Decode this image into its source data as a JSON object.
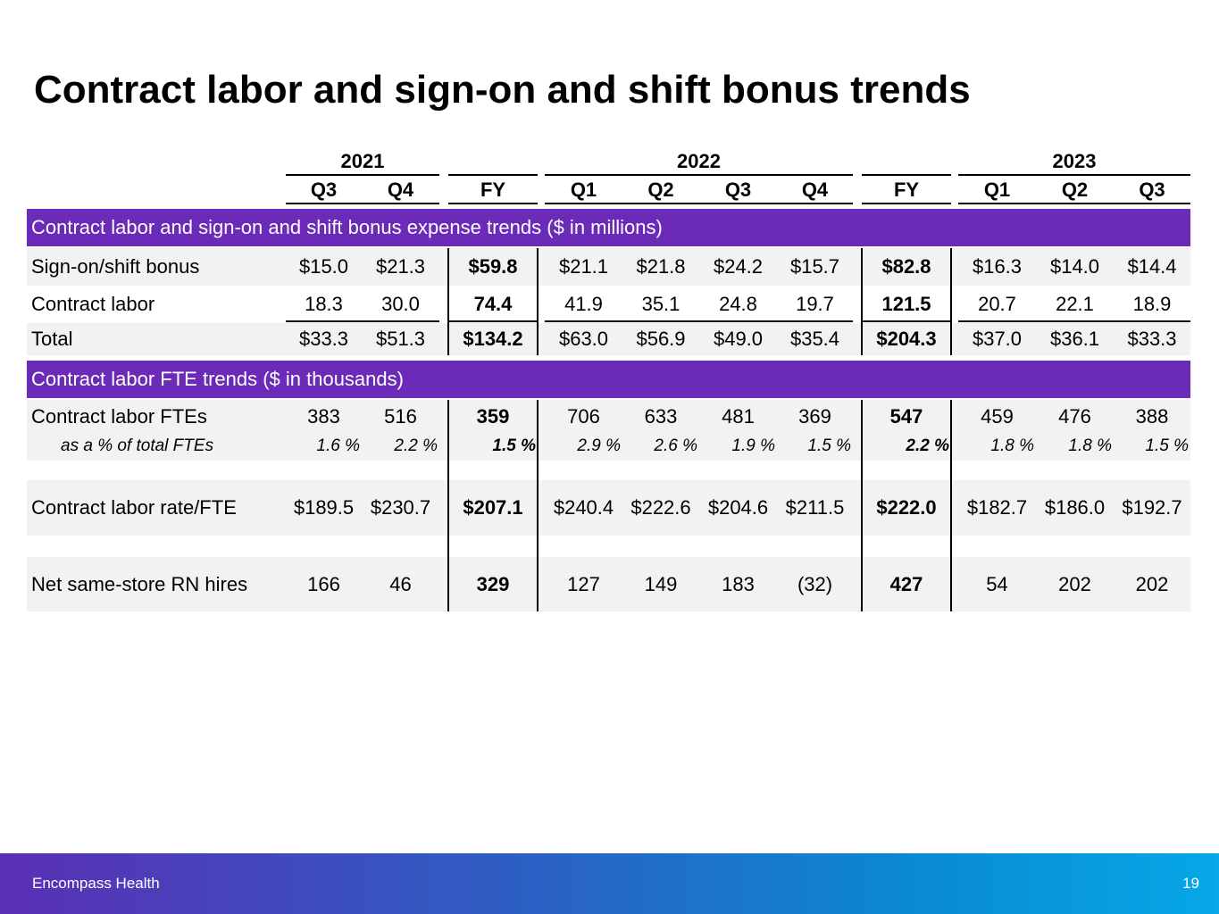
{
  "header": {
    "title": "Contract labor and sign-on and shift bonus trends"
  },
  "table": {
    "years": [
      "2021",
      "2022",
      "2023"
    ],
    "columns": [
      "Q3",
      "Q4",
      "FY",
      "Q1",
      "Q2",
      "Q3",
      "Q4",
      "FY",
      "Q1",
      "Q2",
      "Q3"
    ],
    "sections": [
      {
        "heading": "Contract labor and sign-on and shift bonus expense trends ($ in millions)",
        "rows": [
          {
            "label": "Sign-on/shift bonus",
            "cells": [
              "$15.0",
              "$21.3",
              "$59.8",
              "$21.1",
              "$21.8",
              "$24.2",
              "$15.7",
              "$82.8",
              "$16.3",
              "$14.0",
              "$14.4"
            ]
          },
          {
            "label": "Contract labor",
            "cells": [
              "18.3",
              "30.0",
              "74.4",
              "41.9",
              "35.1",
              "24.8",
              "19.7",
              "121.5",
              "20.7",
              "22.1",
              "18.9"
            ]
          },
          {
            "label": "Total",
            "cells": [
              "$33.3",
              "$51.3",
              "$134.2",
              "$63.0",
              "$56.9",
              "$49.0",
              "$35.4",
              "$204.3",
              "$37.0",
              "$36.1",
              "$33.3"
            ]
          }
        ]
      },
      {
        "heading": "Contract labor FTE trends ($ in thousands)",
        "rows": [
          {
            "label": "Contract labor FTEs",
            "cells": [
              "383",
              "516",
              "359",
              "706",
              "633",
              "481",
              "369",
              "547",
              "459",
              "476",
              "388"
            ]
          },
          {
            "label": "as a % of total FTEs",
            "cells": [
              "1.6 %",
              "2.2 %",
              "1.5 %",
              "2.9 %",
              "2.6 %",
              "1.9 %",
              "1.5 %",
              "2.2 %",
              "1.8 %",
              "1.8 %",
              "1.5 %"
            ]
          },
          {
            "label": "Contract labor rate/FTE",
            "cells": [
              "$189.5",
              "$230.7",
              "$207.1",
              "$240.4",
              "$222.6",
              "$204.6",
              "$211.5",
              "$222.0",
              "$182.7",
              "$186.0",
              "$192.7"
            ]
          },
          {
            "label": "Net same-store RN hires",
            "cells": [
              "166",
              "46",
              "329",
              "127",
              "149",
              "183",
              "(32)",
              "427",
              "54",
              "202",
              "202"
            ]
          }
        ]
      }
    ]
  },
  "footer": {
    "company": "Encompass Health",
    "page": "19"
  }
}
